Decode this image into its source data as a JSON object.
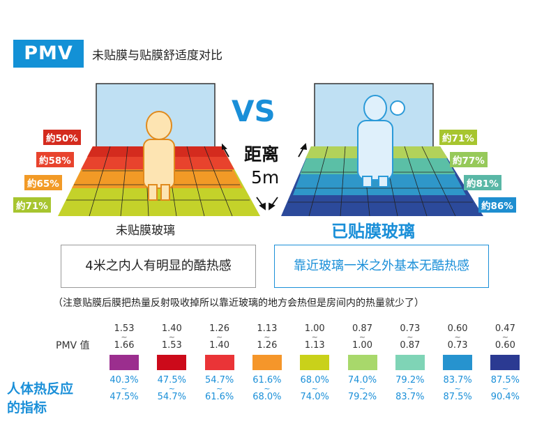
{
  "header": {
    "badge": "PMV",
    "subtitle": "未贴膜与贴膜舒适度对比"
  },
  "vs_label": "VS",
  "distance": {
    "line1": "距离",
    "line2": "5m"
  },
  "left_panel": {
    "label": "未贴膜玻璃",
    "box_text": "4米之内人有明显的酷热感",
    "badges": [
      {
        "text": "約50%",
        "color": "#d42b1e"
      },
      {
        "text": "約58%",
        "color": "#e8432d"
      },
      {
        "text": "約65%",
        "color": "#f29a26"
      },
      {
        "text": "約71%",
        "color": "#a7c52f"
      }
    ]
  },
  "right_panel": {
    "label": "已贴膜玻璃",
    "box_text": "靠近玻璃一米之外基本无酷热感",
    "badges": [
      {
        "text": "約71%",
        "color": "#a7c52f"
      },
      {
        "text": "約77%",
        "color": "#96c95a"
      },
      {
        "text": "約81%",
        "color": "#59b7a6"
      },
      {
        "text": "約86%",
        "color": "#1e8ed0"
      }
    ]
  },
  "note": "（注意贴膜后膜把热量反射吸收掉所以靠近玻璃的地方会热但是房间内的热量就少了）",
  "legend": {
    "pmv_label": "PMV 值",
    "response_label_1": "人体热反应",
    "response_label_2": "的指标"
  },
  "chart_data": {
    "type": "table",
    "rows": [
      {
        "pmv_low": "1.53",
        "pmv_high": "1.66",
        "color": "#9b2e8e",
        "resp_low": "40.3%",
        "resp_high": "47.5%"
      },
      {
        "pmv_low": "1.40",
        "pmv_high": "1.53",
        "color": "#cc0a1a",
        "resp_low": "47.5%",
        "resp_high": "54.7%"
      },
      {
        "pmv_low": "1.26",
        "pmv_high": "1.40",
        "color": "#ea3437",
        "resp_low": "54.7%",
        "resp_high": "61.6%"
      },
      {
        "pmv_low": "1.13",
        "pmv_high": "1.26",
        "color": "#f5962a",
        "resp_low": "61.6%",
        "resp_high": "68.0%"
      },
      {
        "pmv_low": "1.00",
        "pmv_high": "1.13",
        "color": "#c9d11a",
        "resp_low": "68.0%",
        "resp_high": "74.0%"
      },
      {
        "pmv_low": "0.87",
        "pmv_high": "1.00",
        "color": "#a8d86b",
        "resp_low": "74.0%",
        "resp_high": "79.2%"
      },
      {
        "pmv_low": "0.73",
        "pmv_high": "0.87",
        "color": "#7fd4b6",
        "resp_low": "79.2%",
        "resp_high": "83.7%"
      },
      {
        "pmv_low": "0.60",
        "pmv_high": "0.73",
        "color": "#2693cf",
        "resp_low": "83.7%",
        "resp_high": "87.5%"
      },
      {
        "pmv_low": "0.47",
        "pmv_high": "0.60",
        "color": "#2b3a92",
        "resp_low": "87.5%",
        "resp_high": "90.4%"
      }
    ]
  }
}
